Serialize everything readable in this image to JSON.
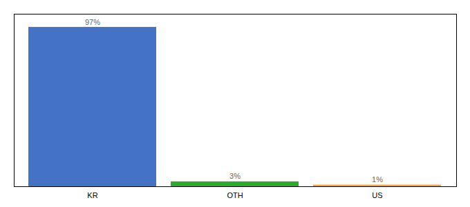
{
  "chart_data": {
    "type": "bar",
    "categories": [
      "KR",
      "OTH",
      "US"
    ],
    "values": [
      97,
      3,
      1
    ],
    "value_labels": [
      "97%",
      "3%",
      "1%"
    ],
    "colors": [
      "#4472C4",
      "#2EAA2E",
      "#F0A830"
    ],
    "ylim": [
      0,
      105
    ],
    "yticks": [],
    "tick_labels": "x",
    "data_labels": true
  }
}
